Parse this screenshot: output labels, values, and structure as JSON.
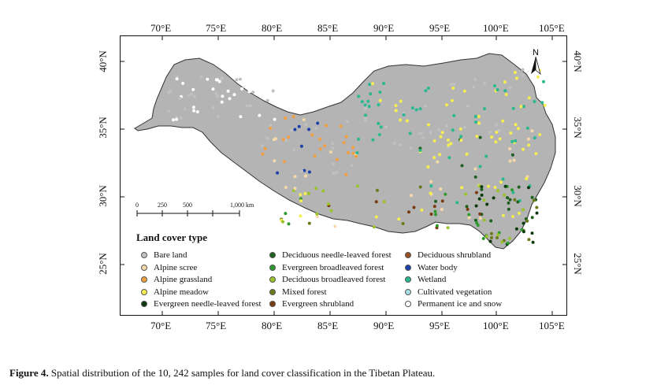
{
  "map": {
    "lon_labels": [
      "70°E",
      "75°E",
      "80°E",
      "85°E",
      "90°E",
      "95°E",
      "100°E",
      "105°E"
    ],
    "lat_labels": [
      "40°N",
      "35°N",
      "30°N",
      "25°N"
    ],
    "north_label": "N",
    "scale_labels": [
      "0",
      "250",
      "500",
      "1,000 km"
    ]
  },
  "legend": {
    "title": "Land cover type",
    "items": [
      {
        "label": "Bare land",
        "color": "#c0c0c0"
      },
      {
        "label": "Alpine scree",
        "color": "#f5d9a8"
      },
      {
        "label": "Alpine grassland",
        "color": "#f0a040"
      },
      {
        "label": "Alpine meadow",
        "color": "#f5ee50"
      },
      {
        "label": "Evergreen needle-leaved forest",
        "color": "#0a3a0a"
      },
      {
        "label": "Deciduous needle-leaved forest",
        "color": "#1f5f1f"
      },
      {
        "label": "Evergreen broadleaved forest",
        "color": "#2e9a2e"
      },
      {
        "label": "Deciduous broadleaved forest",
        "color": "#9ac22a"
      },
      {
        "label": "Mixed forest",
        "color": "#6b7a1a"
      },
      {
        "label": "Evergreen shrubland",
        "color": "#7a3b10"
      },
      {
        "label": "Deciduous shrubland",
        "color": "#9a5020"
      },
      {
        "label": "Water body",
        "color": "#1c3fa8"
      },
      {
        "label": "Wetland",
        "color": "#2ab890"
      },
      {
        "label": "Cultivated vegetation",
        "color": "#a8e0e8"
      },
      {
        "label": "Permanent ice and snow",
        "color": "#ffffff"
      }
    ]
  },
  "caption": {
    "label": "Figure 4.",
    "text": " Spatial distribution of the 10, 242 samples for land cover classification in the Tibetan Plateau."
  }
}
